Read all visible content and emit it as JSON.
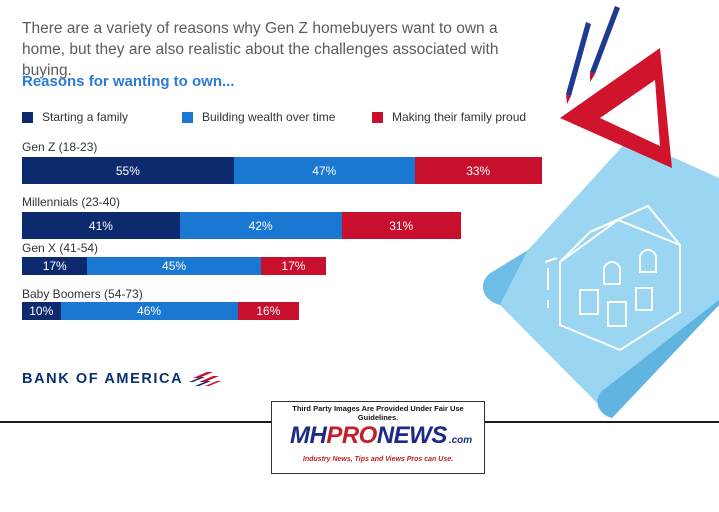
{
  "intro_text": "There are a variety of reasons why Gen Z homebuyers want to own a home, but they are also realistic about the challenges associated with buying.",
  "brand": "BANK OF AMERICA",
  "watermark": {
    "notice": "Third Party Images Are Provided Under Fair Use Guidelines.",
    "logo_mh": "MH",
    "logo_pro": "PRO",
    "logo_news": "NEWS",
    "logo_com": ".com",
    "tagline": "Industry News, Tips and Views Pros can Use."
  },
  "colors": {
    "starting_family": "#0e2a6e",
    "building_wealth": "#1a77d2",
    "family_proud": "#c8102e",
    "title_blue": "#2a7bd6"
  },
  "icons": [
    "pencil-icon",
    "triangle-ruler-icon",
    "house-blueprint-icon",
    "bank-of-america-flag-icon"
  ],
  "chart_data": {
    "type": "bar",
    "orientation": "horizontal-stacked",
    "title": "Reasons for wanting to own...",
    "legend_position": "top",
    "grid": false,
    "series": [
      {
        "name": "Starting a family",
        "color": "#0e2a6e"
      },
      {
        "name": "Building wealth over time",
        "color": "#1a77d2"
      },
      {
        "name": "Making their family proud",
        "color": "#c8102e"
      }
    ],
    "groups": [
      {
        "label": "Gen Z (18-23)",
        "values": [
          55,
          47,
          33
        ],
        "labels": [
          "55%",
          "47%",
          "33%"
        ]
      },
      {
        "label": "Millennials (23-40)",
        "values": [
          41,
          42,
          31
        ],
        "labels": [
          "41%",
          "42%",
          "31%"
        ]
      },
      {
        "label": "Gen X (41-54)",
        "values": [
          17,
          45,
          17
        ],
        "labels": [
          "17%",
          "45%",
          "17%"
        ]
      },
      {
        "label": "Baby Boomers (54-73)",
        "values": [
          10,
          46,
          16
        ],
        "labels": [
          "10%",
          "46%",
          "16%"
        ]
      }
    ]
  }
}
